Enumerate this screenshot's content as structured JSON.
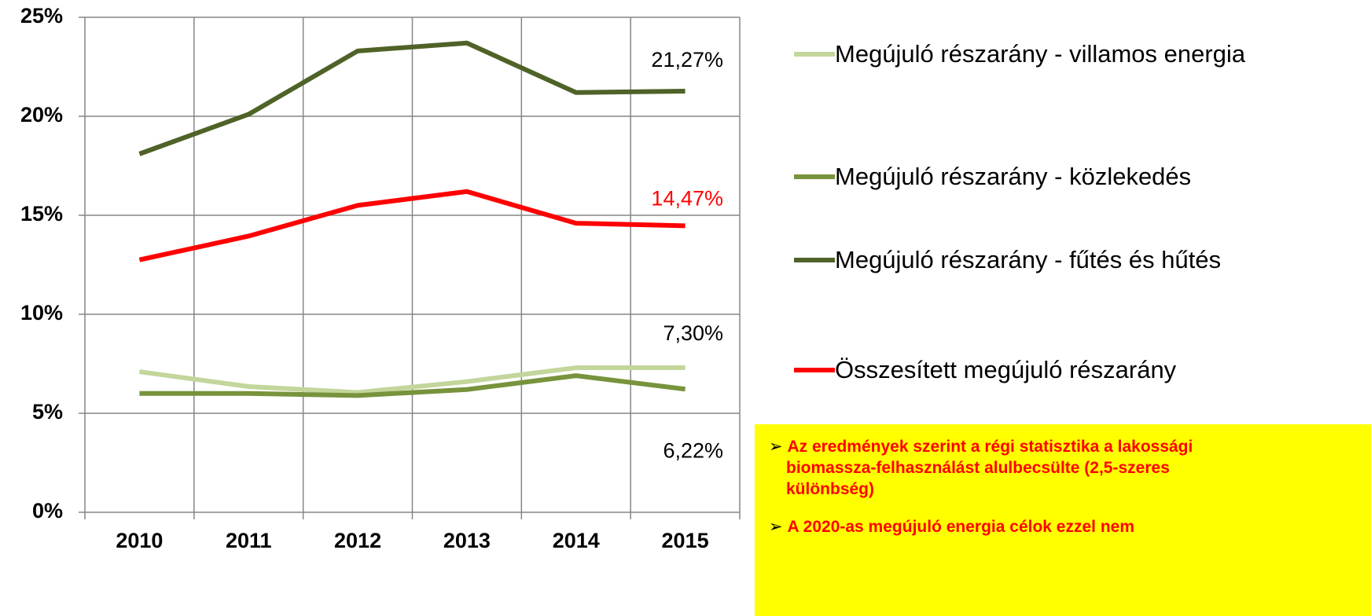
{
  "chart_data": {
    "type": "line",
    "categories": [
      "2010",
      "2011",
      "2012",
      "2013",
      "2014",
      "2015"
    ],
    "series": [
      {
        "name": "Megújuló részarány - villamos energia",
        "color": "#c3d69b",
        "values": [
          7.1,
          6.35,
          6.05,
          6.6,
          7.3,
          7.3
        ],
        "value_labels": [
          null,
          null,
          null,
          null,
          null,
          "7,30%"
        ]
      },
      {
        "name": "Megújuló részarány - közlekedés",
        "color": "#77933c",
        "values": [
          6.0,
          6.0,
          5.9,
          6.2,
          6.9,
          6.22
        ],
        "value_labels": [
          null,
          null,
          null,
          null,
          null,
          "6,22%"
        ]
      },
      {
        "name": "Megújuló részarány - fűtés és hűtés",
        "color": "#4f6228",
        "values": [
          18.1,
          20.1,
          23.3,
          23.7,
          21.2,
          21.27
        ],
        "value_labels": [
          null,
          null,
          null,
          null,
          null,
          "21,27%"
        ]
      },
      {
        "name": "Összesített megújuló részarány",
        "color": "#ff0000",
        "values": [
          12.75,
          13.95,
          15.5,
          16.2,
          14.6,
          14.47
        ],
        "value_labels": [
          null,
          null,
          null,
          null,
          null,
          "14,47%"
        ]
      }
    ],
    "ylim": [
      0,
      25
    ],
    "yticks": [
      {
        "value": 0,
        "label": "0%"
      },
      {
        "value": 5,
        "label": "5%"
      },
      {
        "value": 10,
        "label": "10%"
      },
      {
        "value": 15,
        "label": "15%"
      },
      {
        "value": 20,
        "label": "20%"
      },
      {
        "value": 25,
        "label": "25%"
      }
    ],
    "grid": true,
    "legend": "right",
    "annotations": [
      "Az eredmények szerint a régi statisztika a lakossági biomassza-felhasználást alulbecsülte (2,5-szeres különbség)",
      "A 2020-as megújuló energia célok ezzel nem"
    ]
  }
}
